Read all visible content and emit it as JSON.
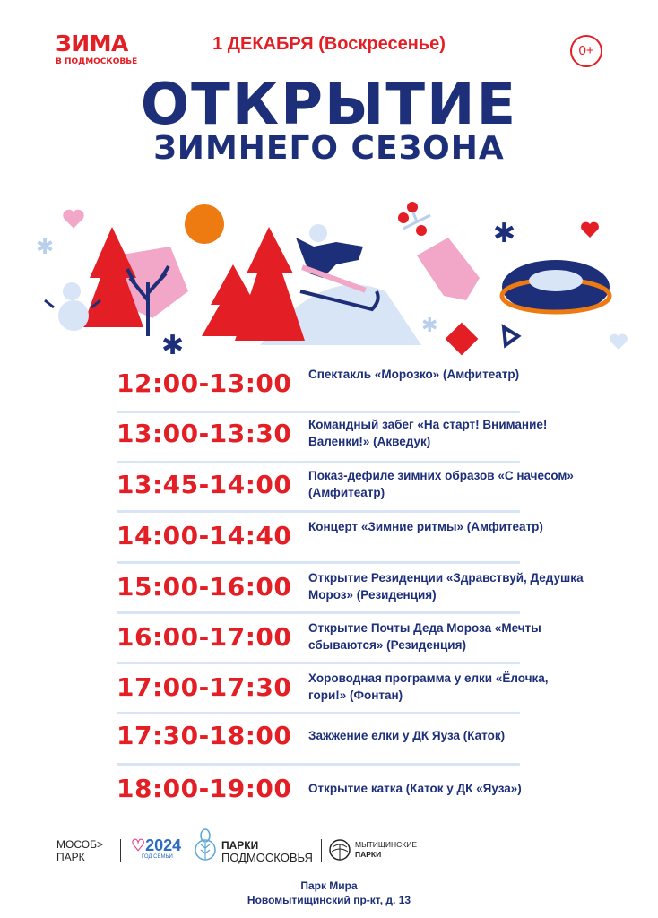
{
  "header": {
    "logo_main": "ЗИМА",
    "logo_sub": "В ПОДМОСКОВЬЕ",
    "date": "1 ДЕКАБРЯ (Воскресенье)",
    "age_rating": "0+",
    "title_line1": "ОТКРЫТИЕ",
    "title_line2": "ЗИМНЕГО СЕЗОНА"
  },
  "colors": {
    "red": "#e31e24",
    "navy": "#1e2f7a",
    "separator": "#d8e5f6",
    "pink": "#f2a6c8",
    "orange": "#ee7a12"
  },
  "schedule": [
    {
      "time": "12:00-13:00",
      "event": "Спектакль «Морозко» (Амфитеатр)"
    },
    {
      "time": "13:00-13:30",
      "event": "Командный забег «На старт!  Внимание! Валенки!» (Акведук)"
    },
    {
      "time": "13:45-14:00",
      "event": "Показ-дефиле зимних образов «С начесом» (Амфитеатр)"
    },
    {
      "time": "14:00-14:40",
      "event": "Концерт «Зимние ритмы» (Амфитеатр)"
    },
    {
      "time": "15:00-16:00",
      "event": "Открытие Резиденции  «Здравствуй, Дедушка Мороз» (Резиденция)"
    },
    {
      "time": "16:00-17:00",
      "event": "Открытие Почты Деда Мороза «Мечты сбываются» (Резиденция)"
    },
    {
      "time": "17:00-17:30",
      "event": "Хороводная программа у елки «Ёлочка, гори!» (Фонтан)"
    },
    {
      "time": "17:30-18:00",
      "event": "Зажжение елки у ДК Яуза (Каток)"
    },
    {
      "time": "18:00-19:00",
      "event": "Открытие катка (Каток у ДК «Яуза»)"
    }
  ],
  "footer": {
    "logos": {
      "mosobpark_line1": "МОСОБ>",
      "mosobpark_line2": "ПАРК",
      "year_logo": "2024",
      "year_sub": "ГОД СЕМЬИ",
      "parks_line1": "ПАРКИ",
      "parks_line2": "ПОДМОСКОВЬЯ",
      "mytishchi_line1": "МЫТИЩИНСКИЕ",
      "mytishchi_line2": "ПАРКИ"
    },
    "venue": "Парк Мира",
    "address": "Новомытищинский пр-кт, д. 13"
  }
}
